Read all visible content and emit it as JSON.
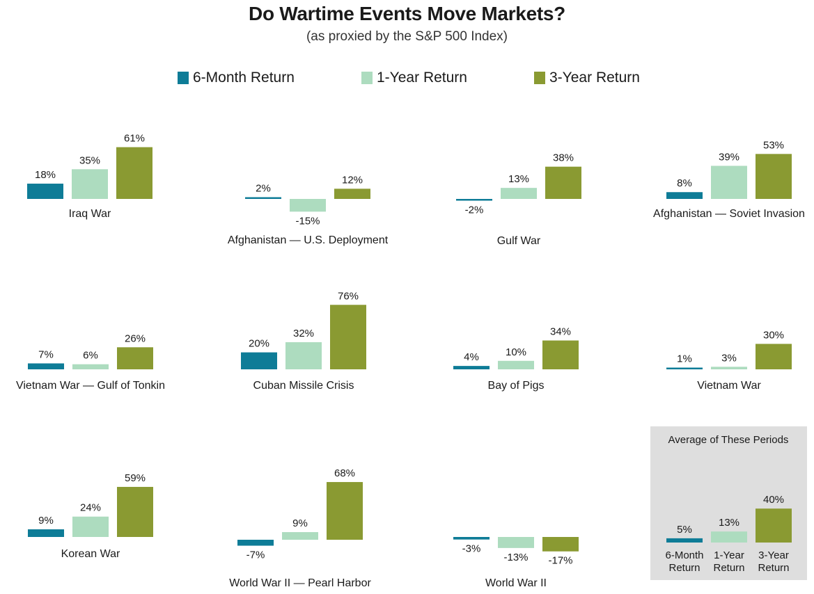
{
  "title": "Do Wartime Events Move Markets?",
  "subtitle": "(as proxied by the S&P 500 Index)",
  "legend": [
    {
      "label": "6-Month Return",
      "color": "#0e7c97"
    },
    {
      "label": "1-Year Return",
      "color": "#addcbf"
    },
    {
      "label": "3-Year Return",
      "color": "#8a9a32"
    }
  ],
  "chart_data": {
    "type": "bar",
    "series_names": [
      "6-Month Return",
      "1-Year Return",
      "3-Year Return"
    ],
    "colors": [
      "#0e7c97",
      "#addcbf",
      "#8a9a32"
    ],
    "panels": [
      {
        "label": "Iraq War",
        "values": [
          18,
          35,
          61
        ],
        "value_labels": [
          "18%",
          "35%",
          "61%"
        ]
      },
      {
        "label": "Afghanistan — U.S. Deployment",
        "values": [
          2,
          -15,
          12
        ],
        "value_labels": [
          "2%",
          "-15%",
          "12%"
        ]
      },
      {
        "label": "Gulf War",
        "values": [
          -2,
          13,
          38
        ],
        "value_labels": [
          "-2%",
          "13%",
          "38%"
        ]
      },
      {
        "label": "Afghanistan — Soviet Invasion",
        "values": [
          8,
          39,
          53
        ],
        "value_labels": [
          "8%",
          "39%",
          "53%"
        ]
      },
      {
        "label": "Vietnam War — Gulf of Tonkin",
        "values": [
          7,
          6,
          26
        ],
        "value_labels": [
          "7%",
          "6%",
          "26%"
        ]
      },
      {
        "label": "Cuban Missile Crisis",
        "values": [
          20,
          32,
          76
        ],
        "value_labels": [
          "20%",
          "32%",
          "76%"
        ]
      },
      {
        "label": "Bay of Pigs",
        "values": [
          4,
          10,
          34
        ],
        "value_labels": [
          "4%",
          "10%",
          "34%"
        ]
      },
      {
        "label": "Vietnam War",
        "values": [
          1,
          3,
          30
        ],
        "value_labels": [
          "1%",
          "3%",
          "30%"
        ]
      },
      {
        "label": "Korean War",
        "values": [
          9,
          24,
          59
        ],
        "value_labels": [
          "9%",
          "24%",
          "59%"
        ]
      },
      {
        "label": "World War II — Pearl Harbor",
        "values": [
          -7,
          9,
          68
        ],
        "value_labels": [
          "-7%",
          "9%",
          "68%"
        ]
      },
      {
        "label": "World War II",
        "values": [
          -3,
          -13,
          -17
        ],
        "value_labels": [
          "-3%",
          "-13%",
          "-17%"
        ]
      }
    ],
    "average": {
      "title": "Average of These Periods",
      "values": [
        5,
        13,
        40
      ],
      "value_labels": [
        "5%",
        "13%",
        "40%"
      ],
      "category_labels": [
        [
          "6-Month",
          "Return"
        ],
        [
          "1-Year",
          "Return"
        ],
        [
          "3-Year",
          "Return"
        ]
      ],
      "box_color": "#dedede"
    }
  }
}
